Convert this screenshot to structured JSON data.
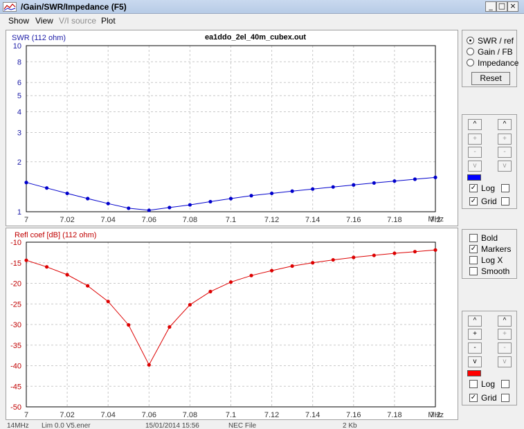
{
  "window": {
    "title": "/Gain/SWR/Impedance (F5)",
    "min": "_",
    "max": "□",
    "close": "×"
  },
  "menu": [
    {
      "label": "Show",
      "disabled": false
    },
    {
      "label": "View",
      "disabled": false
    },
    {
      "label": "V/I source",
      "disabled": true
    },
    {
      "label": "Plot",
      "disabled": false
    }
  ],
  "top_plot": {
    "axis_label": "SWR (112 ohm)",
    "file_title": "ea1ddo_2el_40m_cubex.out",
    "unit": "MHz"
  },
  "bottom_plot": {
    "axis_label": "Refl coef [dB] (112 ohm)",
    "unit": "MHz"
  },
  "mode_panel": {
    "options": [
      {
        "label": "SWR / ref",
        "selected": true
      },
      {
        "label": "Gain / FB",
        "selected": false
      },
      {
        "label": "Impedance",
        "selected": false
      }
    ],
    "reset_label": "Reset"
  },
  "scale_panel_top": {
    "up": "^",
    "plus": "+",
    "minus": "-",
    "down": "v",
    "color": "#0000ff",
    "log_label": "Log",
    "log_checked": true,
    "grid_label": "Grid",
    "grid_checked": true
  },
  "style_panel": {
    "items": [
      {
        "label": "Bold",
        "checked": false
      },
      {
        "label": "Markers",
        "checked": true
      },
      {
        "label": "Log X",
        "checked": false
      },
      {
        "label": "Smooth",
        "checked": false
      }
    ]
  },
  "scale_panel_bottom": {
    "up": "^",
    "plus": "+",
    "minus": "-",
    "down": "v",
    "color": "#ff0000",
    "log_label": "Log",
    "log_checked": false,
    "grid_label": "Grid",
    "grid_checked": true
  },
  "status_bar": [
    "14MHz",
    "Lim 0.0 V5.ener",
    "15/01/2014 15:56",
    "NEC File",
    "2 Kb"
  ],
  "chart_data": [
    {
      "type": "line",
      "ylabel": "SWR (112 ohm)",
      "xlabel": "MHz",
      "y_scale": "log",
      "xlim": [
        7,
        7.2
      ],
      "ylim": [
        1,
        10
      ],
      "x_ticks": [
        "7",
        "7.02",
        "7.04",
        "7.06",
        "7.08",
        "7.1",
        "7.12",
        "7.14",
        "7.16",
        "7.18",
        "7.2"
      ],
      "y_ticks": [
        "1",
        "2",
        "3",
        "4",
        "5",
        "6",
        "8",
        "10"
      ],
      "grid": true,
      "color": "#0000cc",
      "series": [
        {
          "x": [
            7.0,
            7.01,
            7.02,
            7.03,
            7.04,
            7.05,
            7.06,
            7.07,
            7.08,
            7.09,
            7.1,
            7.11,
            7.12,
            7.13,
            7.14,
            7.15,
            7.16,
            7.17,
            7.18,
            7.19,
            7.2
          ],
          "values": [
            1.5,
            1.39,
            1.29,
            1.2,
            1.12,
            1.05,
            1.02,
            1.06,
            1.1,
            1.15,
            1.2,
            1.25,
            1.29,
            1.33,
            1.37,
            1.41,
            1.45,
            1.49,
            1.53,
            1.57,
            1.61
          ]
        }
      ]
    },
    {
      "type": "line",
      "ylabel": "Refl coef [dB] (112 ohm)",
      "xlabel": "MHz",
      "xlim": [
        7,
        7.2
      ],
      "ylim": [
        -50,
        -10
      ],
      "x_ticks": [
        "7",
        "7.02",
        "7.04",
        "7.06",
        "7.08",
        "7.1",
        "7.12",
        "7.14",
        "7.16",
        "7.18",
        "7.2"
      ],
      "y_ticks": [
        "-10",
        "-15",
        "-20",
        "-25",
        "-30",
        "-35",
        "-40",
        "-45",
        "-50"
      ],
      "grid": true,
      "color": "#dd0000",
      "series": [
        {
          "x": [
            7.0,
            7.01,
            7.02,
            7.03,
            7.04,
            7.05,
            7.06,
            7.07,
            7.08,
            7.09,
            7.1,
            7.11,
            7.12,
            7.13,
            7.14,
            7.15,
            7.16,
            7.17,
            7.18,
            7.19,
            7.2
          ],
          "values": [
            -14.4,
            -16.0,
            -17.9,
            -20.6,
            -24.4,
            -30.1,
            -39.8,
            -30.6,
            -25.2,
            -22.0,
            -19.7,
            -18.1,
            -16.9,
            -15.8,
            -15.0,
            -14.3,
            -13.7,
            -13.2,
            -12.7,
            -12.3,
            -11.9
          ]
        }
      ]
    }
  ]
}
